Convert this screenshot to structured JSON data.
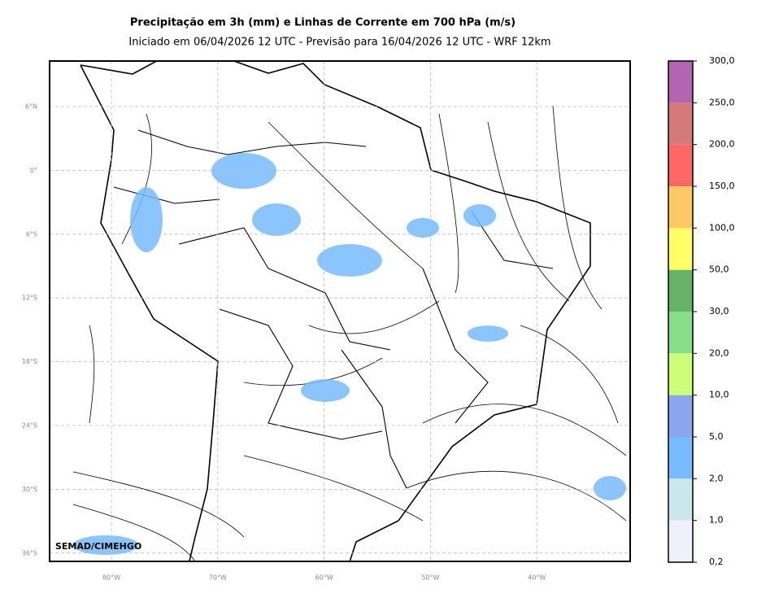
{
  "header": {
    "title": "Precipitação em 3h (mm) e Linhas de Corrente em 700 hPa (m/s)",
    "subtitle": "Iniciado em 06/04/2026 12 UTC - Previsão para 16/04/2026 12 UTC - WRF 12km"
  },
  "map": {
    "credit": "SEMAD/CIMEHGO",
    "lat_labels": [
      "6°N",
      "0°",
      "6°S",
      "12°S",
      "18°S",
      "24°S",
      "30°S",
      "36°S"
    ],
    "lon_labels": [
      "80°W",
      "70°W",
      "60°W",
      "50°W",
      "40°W"
    ]
  },
  "colorbar": {
    "ticks": [
      {
        "value": 0.2,
        "label": "0,2"
      },
      {
        "value": 1,
        "label": "1,0"
      },
      {
        "value": 2,
        "label": "2,0"
      },
      {
        "value": 5,
        "label": "5,0"
      },
      {
        "value": 10,
        "label": "10,0"
      },
      {
        "value": 20,
        "label": "20,0"
      },
      {
        "value": 30,
        "label": "30,0"
      },
      {
        "value": 50,
        "label": "50,0"
      },
      {
        "value": 100,
        "label": "100,0"
      },
      {
        "value": 150,
        "label": "150,0"
      },
      {
        "value": 200,
        "label": "200,0"
      },
      {
        "value": 250,
        "label": "250,0"
      },
      {
        "value": 300,
        "label": "300,0"
      }
    ],
    "colors": [
      "#f0f0fa",
      "#cce6ee",
      "#77bbff",
      "#8ca6ee",
      "#ccff77",
      "#88dd88",
      "#66b266",
      "#ffff66",
      "#ffc866",
      "#ff6666",
      "#d47a7a",
      "#b266b2"
    ]
  }
}
